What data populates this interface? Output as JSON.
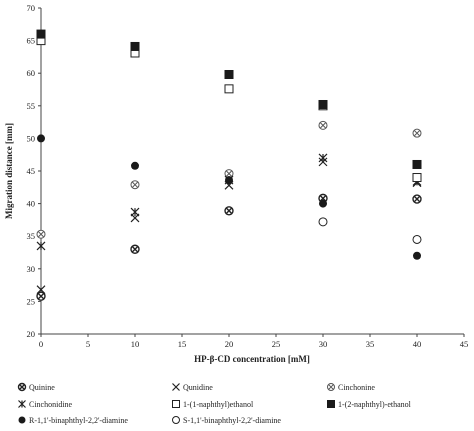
{
  "chart_data": {
    "type": "scatter",
    "title": "",
    "xlabel": "HP-β-CD concentration [mM]",
    "ylabel": "Migration distance [mm]",
    "xlim": [
      0,
      45
    ],
    "ylim": [
      20,
      70
    ],
    "xticks": [
      0,
      5,
      10,
      15,
      20,
      25,
      30,
      35,
      40,
      45
    ],
    "yticks": [
      20,
      25,
      30,
      35,
      40,
      45,
      50,
      55,
      60,
      65,
      70
    ],
    "grid": false,
    "legend_position": "bottom",
    "series": [
      {
        "name": "Quinine",
        "marker": "circle-x",
        "x": [
          0,
          10,
          20,
          30,
          40
        ],
        "y": [
          25.8,
          33.0,
          38.9,
          40.8,
          40.7
        ]
      },
      {
        "name": "Qunidine",
        "marker": "x",
        "x": [
          0,
          10,
          20,
          30,
          40
        ],
        "y": [
          26.8,
          37.8,
          42.8,
          46.4,
          43.2
        ]
      },
      {
        "name": "Cinchonine",
        "marker": "circle-x-light",
        "x": [
          0,
          10,
          20,
          30,
          40
        ],
        "y": [
          35.3,
          42.9,
          44.6,
          52.0,
          50.8
        ]
      },
      {
        "name": "Cinchonidine",
        "marker": "asterisk",
        "x": [
          0,
          10,
          20,
          30,
          40
        ],
        "y": [
          33.5,
          38.7,
          43.6,
          47.0,
          43.4
        ]
      },
      {
        "name": "1-(1-naphthyl)ethanol",
        "marker": "open-square",
        "x": [
          0,
          10,
          20,
          30,
          40
        ],
        "y": [
          65.0,
          63.1,
          57.6,
          55.0,
          44.0
        ]
      },
      {
        "name": "1-(2-naphthyl)-ethanol",
        "marker": "filled-square",
        "x": [
          0,
          10,
          20,
          30,
          40
        ],
        "y": [
          66.0,
          64.1,
          59.8,
          55.2,
          46.0
        ]
      },
      {
        "name": "R-1,1'-binaphthyl-2,2'-diamine",
        "marker": "filled-circle",
        "x": [
          0,
          10,
          20,
          30,
          40
        ],
        "y": [
          50.0,
          45.8,
          43.6,
          40.0,
          32.0
        ]
      },
      {
        "name": "S-1,1'-binaphthyl-2,2'-diamine",
        "marker": "open-circle",
        "x": [
          30,
          40
        ],
        "y": [
          37.2,
          34.5
        ]
      }
    ]
  }
}
